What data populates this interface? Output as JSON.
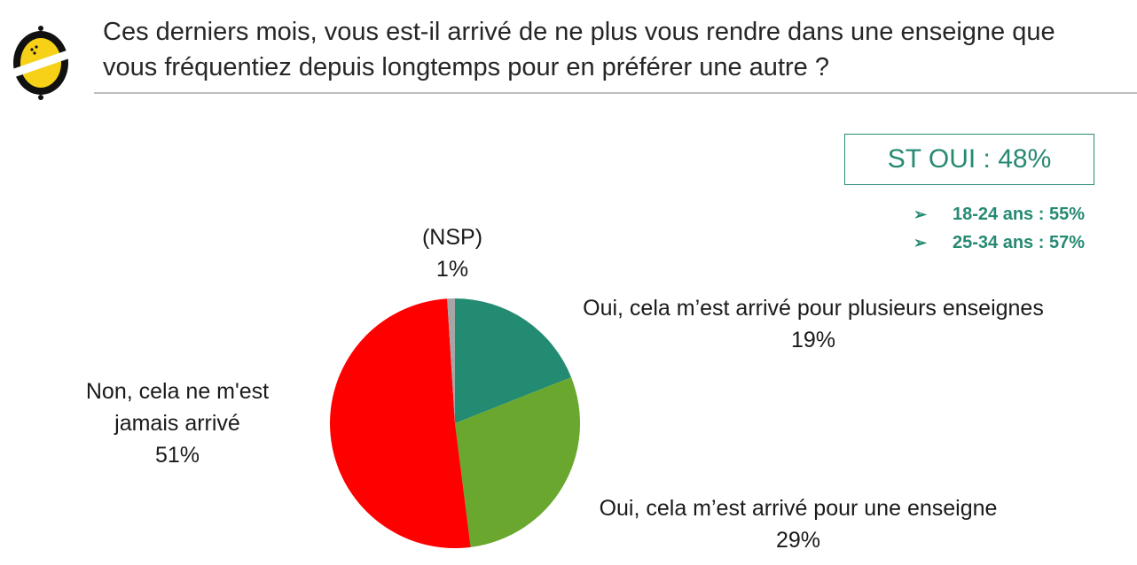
{
  "header": {
    "question_line1": "Ces derniers mois, vous est-il arrivé de ne plus vous rendre dans une enseigne que",
    "question_line2": "vous fréquentiez depuis longtemps pour en préférer une autre ?"
  },
  "highlight": {
    "title": "ST OUI : 48%",
    "items": [
      "18-24 ans : 55%",
      "25-34 ans : 57%"
    ],
    "color": "#268a73"
  },
  "chart_data": {
    "type": "pie",
    "start_angle_deg": 0,
    "direction": "clockwise",
    "slices": [
      {
        "label_line1": "Oui, cela m’est arrivé pour plusieurs enseignes",
        "label_line2": "",
        "value": 19,
        "display": "19%",
        "color": "#238b72"
      },
      {
        "label_line1": "Oui, cela m’est arrivé pour une enseigne",
        "label_line2": "",
        "value": 29,
        "display": "29%",
        "color": "#6aa72e"
      },
      {
        "label_line1": "Non, cela ne m'est",
        "label_line2": "jamais arrivé",
        "value": 51,
        "display": "51%",
        "color": "#fe0000"
      },
      {
        "label_line1": "(NSP)",
        "label_line2": "",
        "value": 1,
        "display": "1%",
        "color": "#a6a6a6"
      }
    ]
  }
}
